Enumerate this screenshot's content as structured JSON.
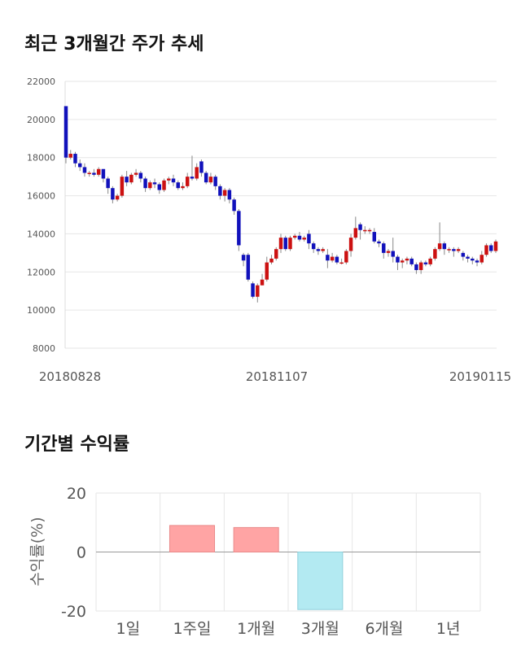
{
  "stock_section": {
    "title": "최근 3개월간 주가 추세"
  },
  "return_section": {
    "title": "기간별 수익률"
  },
  "chart_data": [
    {
      "type": "candlestick",
      "title": "최근 3개월간 주가 추세",
      "y_ticks": [
        "22000",
        "20000",
        "18000",
        "16000",
        "14000",
        "12000",
        "10000",
        "8000"
      ],
      "ylim": [
        8000,
        22000
      ],
      "x_tick_labels": [
        "20180828",
        "20181107",
        "20190115"
      ],
      "grid": true,
      "up_color": "#cc1111",
      "down_color": "#1111bb",
      "candles": [
        [
          20700,
          18000,
          20700,
          17700
        ],
        [
          18000,
          18200,
          18400,
          17900
        ],
        [
          18200,
          17700,
          18300,
          17500
        ],
        [
          17700,
          17500,
          17900,
          17300
        ],
        [
          17500,
          17200,
          17700,
          17000
        ],
        [
          17200,
          17200,
          17300,
          17000
        ],
        [
          17200,
          17100,
          17400,
          17000
        ],
        [
          17100,
          17400,
          17500,
          17000
        ],
        [
          17400,
          16900,
          17400,
          16700
        ],
        [
          16900,
          16400,
          17000,
          16100
        ],
        [
          16400,
          15800,
          16500,
          15600
        ],
        [
          15800,
          16000,
          16100,
          15700
        ],
        [
          16000,
          17000,
          17100,
          15900
        ],
        [
          17000,
          16700,
          17300,
          16500
        ],
        [
          16700,
          17100,
          17200,
          16600
        ],
        [
          17100,
          17200,
          17400,
          17000
        ],
        [
          17200,
          16900,
          17300,
          16700
        ],
        [
          16900,
          16400,
          17000,
          16200
        ],
        [
          16400,
          16700,
          16800,
          16300
        ],
        [
          16700,
          16600,
          16900,
          16400
        ],
        [
          16600,
          16300,
          16700,
          16100
        ],
        [
          16300,
          16800,
          16900,
          16200
        ],
        [
          16800,
          16900,
          17000,
          16600
        ],
        [
          16900,
          16700,
          17100,
          16500
        ],
        [
          16700,
          16400,
          16800,
          16300
        ],
        [
          16400,
          16500,
          16700,
          16300
        ],
        [
          16500,
          17000,
          17200,
          16400
        ],
        [
          17000,
          16900,
          18100,
          16800
        ],
        [
          16900,
          17500,
          17700,
          16800
        ],
        [
          17800,
          17200,
          17900,
          17000
        ],
        [
          17200,
          16700,
          17300,
          16600
        ],
        [
          16700,
          17000,
          17200,
          16600
        ],
        [
          17000,
          16500,
          17100,
          16300
        ],
        [
          16500,
          16000,
          16600,
          15800
        ],
        [
          16000,
          16300,
          16400,
          15700
        ],
        [
          16300,
          15800,
          16400,
          15600
        ],
        [
          15800,
          15200,
          15900,
          15000
        ],
        [
          15200,
          13400,
          15300,
          13100
        ],
        [
          12900,
          12600,
          13000,
          12300
        ],
        [
          12900,
          11600,
          13000,
          11500
        ],
        [
          11400,
          10700,
          11500,
          10600
        ],
        [
          10700,
          11300,
          11400,
          10400
        ],
        [
          11300,
          11600,
          11900,
          11300
        ],
        [
          11600,
          12500,
          12800,
          11500
        ],
        [
          12500,
          12700,
          12900,
          12400
        ],
        [
          12700,
          13200,
          13300,
          12600
        ],
        [
          13200,
          13800,
          14000,
          13000
        ],
        [
          13800,
          13200,
          13900,
          13100
        ],
        [
          13200,
          13800,
          13900,
          13100
        ],
        [
          13800,
          13900,
          14000,
          13700
        ],
        [
          13900,
          13700,
          14100,
          13600
        ],
        [
          13700,
          13800,
          13900,
          13600
        ],
        [
          14000,
          13500,
          14200,
          13200
        ],
        [
          13500,
          13200,
          13600,
          13000
        ],
        [
          13200,
          13100,
          13300,
          12900
        ],
        [
          13100,
          13200,
          13300,
          13000
        ],
        [
          12900,
          12600,
          13200,
          12200
        ],
        [
          12600,
          12800,
          13000,
          12500
        ],
        [
          12800,
          12500,
          12900,
          12400
        ],
        [
          12500,
          12500,
          12700,
          12400
        ],
        [
          12500,
          13100,
          13200,
          12400
        ],
        [
          13100,
          13800,
          14000,
          12800
        ],
        [
          13800,
          14300,
          14900,
          13700
        ],
        [
          14500,
          14200,
          14600,
          13700
        ],
        [
          14200,
          14200,
          14400,
          14000
        ],
        [
          14200,
          14200,
          14300,
          14000
        ],
        [
          14100,
          13600,
          14300,
          13500
        ],
        [
          13600,
          13500,
          13700,
          13300
        ],
        [
          13500,
          13000,
          13600,
          12700
        ],
        [
          13000,
          13100,
          13200,
          12800
        ],
        [
          13100,
          12800,
          13800,
          12500
        ],
        [
          12800,
          12500,
          12900,
          12100
        ],
        [
          12500,
          12600,
          12700,
          12200
        ],
        [
          12600,
          12700,
          12800,
          12400
        ],
        [
          12700,
          12400,
          12800,
          12300
        ],
        [
          12400,
          12100,
          12500,
          11900
        ],
        [
          12100,
          12500,
          12600,
          11900
        ],
        [
          12500,
          12400,
          12600,
          12300
        ],
        [
          12400,
          12700,
          12800,
          12300
        ],
        [
          12700,
          13200,
          13300,
          12600
        ],
        [
          13200,
          13500,
          14600,
          13100
        ],
        [
          13500,
          13200,
          13600,
          12900
        ],
        [
          13200,
          13200,
          13300,
          13000
        ],
        [
          13200,
          13100,
          13300,
          12800
        ],
        [
          13100,
          13200,
          13300,
          13000
        ],
        [
          13000,
          12800,
          13100,
          12600
        ],
        [
          12800,
          12700,
          12900,
          12500
        ],
        [
          12700,
          12600,
          12800,
          12400
        ],
        [
          12600,
          12500,
          12700,
          12300
        ],
        [
          12500,
          12900,
          13100,
          12400
        ],
        [
          12900,
          13400,
          13500,
          12800
        ],
        [
          13400,
          13100,
          13500,
          13000
        ],
        [
          13100,
          13600,
          13700,
          13000
        ]
      ]
    },
    {
      "type": "bar",
      "title": "기간별 수익률",
      "categories": [
        "1일",
        "1주일",
        "1개월",
        "3개월",
        "6개월",
        "1년"
      ],
      "values": [
        0,
        9.0,
        8.3,
        -19.5,
        0,
        0
      ],
      "ylabel": "수익률(%)",
      "y_ticks": [
        "20",
        "0",
        "-20"
      ],
      "ylim": [
        -20,
        20
      ],
      "grid": true,
      "positive_color": "#ffa4a4",
      "negative_color": "#b3eaf2"
    }
  ]
}
